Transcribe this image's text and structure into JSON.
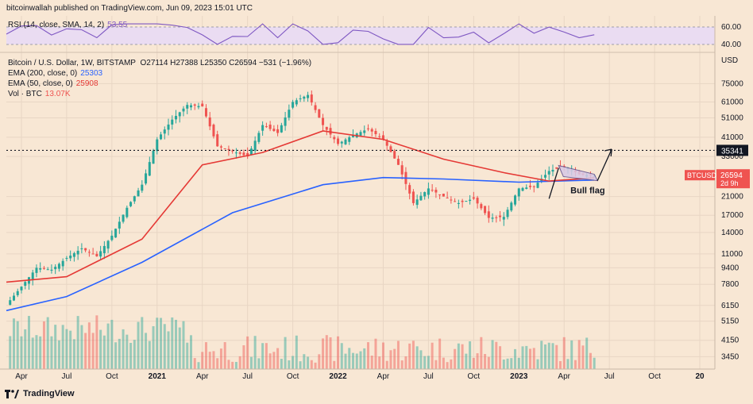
{
  "header": {
    "publisher": "bitcoinwallah published on TradingView.com, Jun 09, 2023 15:01 UTC"
  },
  "rsi": {
    "label": "RSI (14, close, SMA, 14, 2)",
    "value": "53.55",
    "ticks": [
      "60.00",
      "40.00"
    ],
    "color": "#7e57c2"
  },
  "legend": {
    "symbol": "Bitcoin / U.S. Dollar, 1W, BITSTAMP",
    "ohlc": "O27114  H27388  L25350  C26594  −531 (−1.96%)",
    "ema200_label": "EMA (200, close, 0)",
    "ema200_value": "25303",
    "ema50_label": "EMA (50, close, 0)",
    "ema50_value": "25908",
    "vol_label": "Vol · BTC",
    "vol_value": "13.07K"
  },
  "price_axis": {
    "unit": "USD",
    "ticks": [
      "75000",
      "61000",
      "51000",
      "41000",
      "33000",
      "21000",
      "17000",
      "14000",
      "11000",
      "9400",
      "7800",
      "6150",
      "5150",
      "4150",
      "3450"
    ],
    "hline_label": "35341",
    "last_label": "26594",
    "last_symbol": "BTCUSD",
    "countdown": "2d 9h"
  },
  "time_axis": {
    "ticks": [
      "Apr",
      "Jul",
      "Oct",
      "2021",
      "Apr",
      "Jul",
      "Oct",
      "2022",
      "Apr",
      "Jul",
      "Oct",
      "2023",
      "Apr",
      "Jul",
      "Oct",
      "20"
    ]
  },
  "annotation": {
    "bull_flag": "Bull flag"
  },
  "colors": {
    "up": "#26a69a",
    "down": "#ef5350",
    "ema200": "#2962ff",
    "ema50": "#e53935",
    "background": "#f8e7d4"
  },
  "footer": {
    "brand": "TradingView"
  },
  "chart_data": {
    "type": "candlestick",
    "title": "Bitcoin / U.S. Dollar, 1W, BITSTAMP",
    "scale": "log",
    "ylim": [
      3000,
      90000
    ],
    "x_range": [
      "2020-03",
      "2024-02"
    ],
    "hline": 35341,
    "weekly_close_points": [
      [
        "2020-03",
        6200
      ],
      [
        "2020-04",
        7600
      ],
      [
        "2020-05",
        9400
      ],
      [
        "2020-06",
        9200
      ],
      [
        "2020-07",
        10500
      ],
      [
        "2020-08",
        11700
      ],
      [
        "2020-09",
        10700
      ],
      [
        "2020-10",
        13500
      ],
      [
        "2020-11",
        18500
      ],
      [
        "2020-12",
        24000
      ],
      [
        "2021-01",
        40000
      ],
      [
        "2021-02",
        50000
      ],
      [
        "2021-03",
        59000
      ],
      [
        "2021-04",
        58000
      ],
      [
        "2021-05",
        37000
      ],
      [
        "2021-06",
        35000
      ],
      [
        "2021-07",
        33000
      ],
      [
        "2021-08",
        47000
      ],
      [
        "2021-09",
        43000
      ],
      [
        "2021-10",
        61000
      ],
      [
        "2021-11",
        66000
      ],
      [
        "2021-12",
        47000
      ],
      [
        "2022-01",
        38000
      ],
      [
        "2022-02",
        42000
      ],
      [
        "2022-03",
        45000
      ],
      [
        "2022-04",
        40000
      ],
      [
        "2022-05",
        30000
      ],
      [
        "2022-06",
        19500
      ],
      [
        "2022-07",
        23000
      ],
      [
        "2022-08",
        21000
      ],
      [
        "2022-09",
        19500
      ],
      [
        "2022-10",
        20500
      ],
      [
        "2022-11",
        16500
      ],
      [
        "2022-12",
        16700
      ],
      [
        "2023-01",
        23000
      ],
      [
        "2023-02",
        23500
      ],
      [
        "2023-03",
        28000
      ],
      [
        "2023-04",
        29500
      ],
      [
        "2023-05",
        27000
      ],
      [
        "2023-06",
        26594
      ]
    ],
    "series": [
      {
        "name": "EMA (200, close, 0)",
        "points": [
          [
            "2020-03",
            5800
          ],
          [
            "2020-07",
            6800
          ],
          [
            "2020-12",
            10000
          ],
          [
            "2021-06",
            17500
          ],
          [
            "2021-12",
            24000
          ],
          [
            "2022-04",
            26000
          ],
          [
            "2022-08",
            25600
          ],
          [
            "2023-01",
            24700
          ],
          [
            "2023-06",
            25303
          ]
        ]
      },
      {
        "name": "EMA (50, close, 0)",
        "points": [
          [
            "2020-03",
            8000
          ],
          [
            "2020-07",
            8500
          ],
          [
            "2020-12",
            13000
          ],
          [
            "2021-04",
            30000
          ],
          [
            "2021-08",
            34500
          ],
          [
            "2021-12",
            44000
          ],
          [
            "2022-04",
            40000
          ],
          [
            "2022-08",
            32000
          ],
          [
            "2022-12",
            27500
          ],
          [
            "2023-03",
            25000
          ],
          [
            "2023-06",
            25908
          ]
        ]
      },
      {
        "name": "Vol · BTC",
        "last": "13.07K"
      }
    ]
  }
}
